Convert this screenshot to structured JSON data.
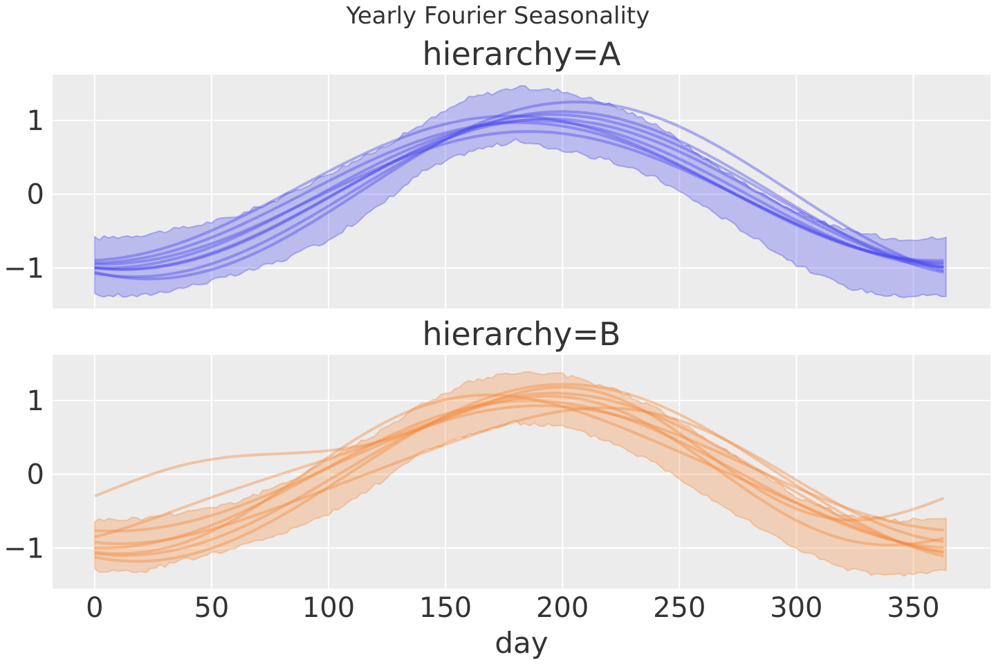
{
  "chart_data": {
    "type": "line",
    "title": "Yearly Fourier Seasonality",
    "xlabel": "day",
    "xlim": [
      -18,
      383
    ],
    "ylim": [
      -1.55,
      1.62
    ],
    "xticks": [
      "0",
      "50",
      "100",
      "150",
      "200",
      "250",
      "300",
      "350"
    ],
    "yticks": [
      "−1",
      "0",
      "1"
    ],
    "grid": true,
    "panels": [
      {
        "title": "hierarchy=A",
        "color": "#4a4af0",
        "band": {
          "x": [
            0,
            20,
            40,
            60,
            80,
            100,
            120,
            140,
            160,
            180,
            200,
            220,
            240,
            260,
            280,
            300,
            320,
            340,
            365
          ],
          "upper": [
            -0.6,
            -0.55,
            -0.45,
            -0.3,
            -0.05,
            0.28,
            0.58,
            0.95,
            1.3,
            1.45,
            1.4,
            1.22,
            0.95,
            0.5,
            0.1,
            -0.25,
            -0.48,
            -0.6,
            -0.6
          ],
          "lower": [
            -1.37,
            -1.38,
            -1.25,
            -1.1,
            -0.9,
            -0.62,
            -0.2,
            0.3,
            0.58,
            0.72,
            0.6,
            0.45,
            0.22,
            -0.15,
            -0.55,
            -0.95,
            -1.25,
            -1.38,
            -1.37
          ]
        },
        "lines": [
          {
            "amp": 1.02,
            "offset": 0.0,
            "phase": 8
          },
          {
            "amp": 0.95,
            "offset": 0.02,
            "phase": -4
          },
          {
            "amp": 1.0,
            "offset": 0.0,
            "phase": 2
          },
          {
            "amp": 1.12,
            "offset": 0.0,
            "phase": 14
          },
          {
            "amp": 0.9,
            "offset": -0.05,
            "phase": 0
          },
          {
            "amp": 1.05,
            "offset": 0.03,
            "phase": 10
          },
          {
            "amp": 0.98,
            "offset": 0.08,
            "phase": -8
          },
          {
            "amp": 1.2,
            "offset": 0.05,
            "phase": 20
          }
        ]
      },
      {
        "title": "hierarchy=B",
        "color": "#f58a3c",
        "band": {
          "x": [
            0,
            20,
            40,
            60,
            80,
            100,
            120,
            140,
            160,
            180,
            200,
            220,
            240,
            260,
            280,
            300,
            320,
            340,
            365
          ],
          "upper": [
            -0.62,
            -0.6,
            -0.5,
            -0.38,
            -0.15,
            0.2,
            0.55,
            0.95,
            1.25,
            1.38,
            1.35,
            1.18,
            0.9,
            0.5,
            0.12,
            -0.3,
            -0.55,
            -0.62,
            -0.62
          ],
          "lower": [
            -1.3,
            -1.32,
            -1.15,
            -1.0,
            -0.8,
            -0.55,
            -0.15,
            0.3,
            0.55,
            0.7,
            0.65,
            0.45,
            0.15,
            -0.25,
            -0.65,
            -1.0,
            -1.28,
            -1.38,
            -1.3
          ]
        },
        "lines": [
          {
            "amp": 1.0,
            "offset": 0.0,
            "phase": 0
          },
          {
            "amp": 0.95,
            "offset": 0.05,
            "phase": -10,
            "h2": 0.18
          },
          {
            "amp": 1.1,
            "offset": 0.0,
            "phase": 10
          },
          {
            "amp": 0.85,
            "offset": 0.08,
            "phase": 5
          },
          {
            "amp": 1.05,
            "offset": 0.0,
            "phase": -5,
            "h2": -0.12
          },
          {
            "amp": 0.72,
            "offset": 0.28,
            "phase": -15,
            "h2": 0.32
          },
          {
            "amp": 1.2,
            "offset": 0.02,
            "phase": 15
          },
          {
            "amp": 0.9,
            "offset": -0.02,
            "phase": 20,
            "h2": 0.1
          }
        ]
      }
    ]
  }
}
